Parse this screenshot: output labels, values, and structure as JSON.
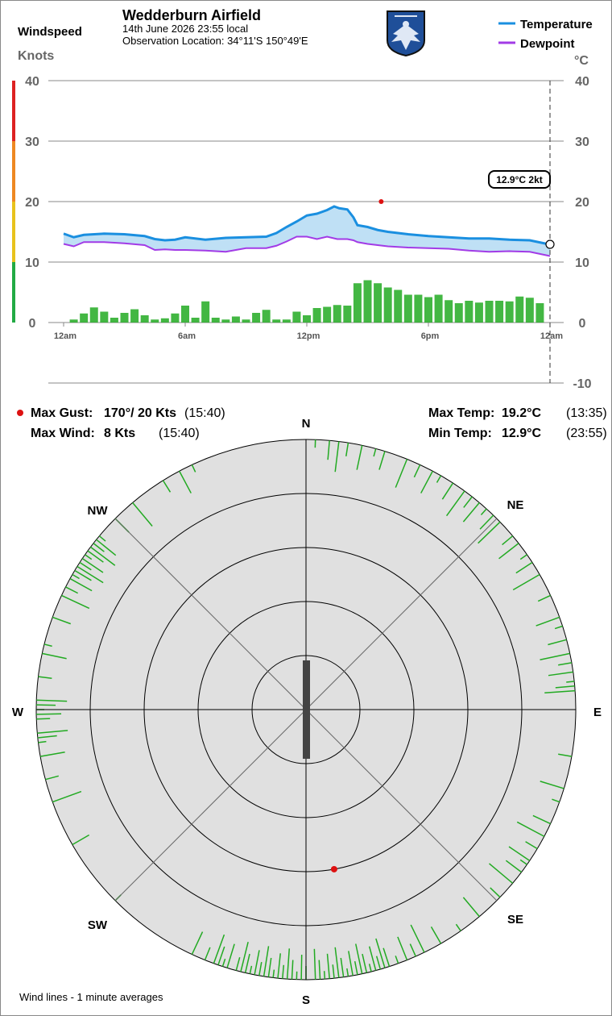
{
  "header": {
    "title": "Wedderburn Airfield",
    "date_line": "14th June 2026  23:55 local",
    "location_line": "Observation Location: 34°11'S 150°49'E",
    "windspeed_label": "Windspeed",
    "knots_label": "Knots",
    "celsius_label": "°C"
  },
  "legend": {
    "temperature": "Temperature",
    "dewpoint": "Dewpoint"
  },
  "colors": {
    "temperature": "#1a8fe0",
    "dewpoint": "#a23be6",
    "fill": "#bfe0f5",
    "wind_bar": "#22aa22",
    "gust_marker": "#dd1111",
    "rose_bg": "#e0e0e0",
    "runway": "#444444",
    "scale_green": "#22aa44",
    "scale_yellow": "#e8c21c",
    "scale_orange": "#ee8822",
    "scale_red": "#dd2222"
  },
  "readout": {
    "tooltip": "12.9°C  2kt"
  },
  "stats": {
    "max_gust_label": "Max Gust:",
    "max_gust_value": "170°/ 20 Kts",
    "max_gust_time": "(15:40)",
    "max_wind_label": "Max Wind:",
    "max_wind_value": "8 Kts",
    "max_wind_time": "(15:40)",
    "max_temp_label": "Max Temp:",
    "max_temp_value": "19.2°C",
    "max_temp_time": "(13:35)",
    "min_temp_label": "Min Temp:",
    "min_temp_value": "12.9°C",
    "min_temp_time": "(23:55)"
  },
  "compass": {
    "n": "N",
    "ne": "NE",
    "e": "E",
    "se": "SE",
    "s": "S",
    "sw": "SW",
    "w": "W",
    "nw": "NW"
  },
  "footer": {
    "note": "Wind lines - 1 minute averages"
  },
  "chart_data": [
    {
      "type": "line",
      "x_unit": "hours since midnight",
      "x_ticks": [
        {
          "x": 0,
          "label": "12am"
        },
        {
          "x": 6,
          "label": "6am"
        },
        {
          "x": 12,
          "label": "12pm"
        },
        {
          "x": 18,
          "label": "6pm"
        },
        {
          "x": 24,
          "label": "12am"
        }
      ],
      "xlim": [
        0,
        24
      ],
      "left_axis": {
        "label": "Knots",
        "ticks": [
          0,
          10,
          20,
          30,
          40
        ],
        "ylim": [
          0,
          40
        ]
      },
      "right_axis": {
        "label": "°C",
        "ticks": [
          -10,
          0,
          10,
          20,
          30,
          40
        ],
        "ylim": [
          -10,
          40
        ]
      },
      "grid": true,
      "legend_position": "top-right",
      "series": [
        {
          "name": "Temperature",
          "x": [
            0,
            0.5,
            1,
            2,
            3,
            4,
            4.5,
            5,
            5.5,
            6,
            7,
            8,
            9,
            10,
            10.5,
            11,
            11.5,
            12,
            12.5,
            13,
            13.35,
            13.6,
            14,
            14.3,
            14.5,
            15,
            15.5,
            16,
            17,
            18,
            19,
            20,
            21,
            22,
            23,
            24
          ],
          "values": [
            14.7,
            14.1,
            14.5,
            14.7,
            14.6,
            14.3,
            13.8,
            13.6,
            13.7,
            14.1,
            13.7,
            14.0,
            14.1,
            14.2,
            14.8,
            15.8,
            16.7,
            17.7,
            18.0,
            18.6,
            19.2,
            18.9,
            18.7,
            17.4,
            16.1,
            15.8,
            15.3,
            15.0,
            14.6,
            14.3,
            14.1,
            13.9,
            13.9,
            13.7,
            13.6,
            12.9
          ]
        },
        {
          "name": "Dewpoint",
          "x": [
            0,
            0.5,
            1,
            2,
            3,
            4,
            4.5,
            5,
            5.5,
            6,
            7,
            8,
            9,
            10,
            10.5,
            11,
            11.5,
            12,
            12.5,
            13,
            13.5,
            14,
            14.3,
            14.5,
            15,
            15.5,
            16,
            17,
            18,
            19,
            20,
            21,
            22,
            23,
            24
          ],
          "values": [
            13.0,
            12.6,
            13.3,
            13.3,
            13.1,
            12.8,
            12.0,
            12.1,
            12.0,
            12.0,
            11.9,
            11.7,
            12.3,
            12.3,
            12.7,
            13.4,
            14.2,
            14.2,
            13.8,
            14.2,
            13.8,
            13.8,
            13.6,
            13.3,
            13.0,
            12.8,
            12.6,
            12.4,
            12.3,
            12.2,
            11.9,
            11.7,
            11.8,
            11.7,
            11.0
          ]
        },
        {
          "name": "Wind speed (knots)",
          "x": [
            0.5,
            1.0,
            1.5,
            2.0,
            2.5,
            3.0,
            3.5,
            4.0,
            4.5,
            5.0,
            5.5,
            6.0,
            6.5,
            7.0,
            7.5,
            8.0,
            8.5,
            9.0,
            9.5,
            10.0,
            10.5,
            11.0,
            11.5,
            12.0,
            12.5,
            13.0,
            13.5,
            14.0,
            14.5,
            15.0,
            15.5,
            16.0,
            16.5,
            17.0,
            17.5,
            18.0,
            18.5,
            19.0,
            19.5,
            20.0,
            20.5,
            21.0,
            21.5,
            22.0,
            22.5,
            23.0,
            23.5
          ],
          "values": [
            0.5,
            1.5,
            2.5,
            1.8,
            0.8,
            1.6,
            2.2,
            1.2,
            0.5,
            0.7,
            1.5,
            2.8,
            0.8,
            3.5,
            0.8,
            0.5,
            1.0,
            0.5,
            1.6,
            2.1,
            0.5,
            0.5,
            1.8,
            1.2,
            2.4,
            2.6,
            2.9,
            2.8,
            6.5,
            7.0,
            6.5,
            5.8,
            5.4,
            4.6,
            4.6,
            4.2,
            4.6,
            3.7,
            3.2,
            3.6,
            3.3,
            3.6,
            3.6,
            3.5,
            4.3,
            4.1,
            3.2
          ]
        }
      ],
      "markers": [
        {
          "name": "Max Gust",
          "x": 15.67,
          "y": 20
        }
      ]
    },
    {
      "type": "scatter",
      "chart": "polar wind rose",
      "radial_max_knots": 20,
      "ring_values": [
        4,
        8,
        12,
        16,
        20
      ],
      "runway_heading_deg": 180,
      "max_gust": {
        "direction_deg": 170,
        "speed_kts": 20
      },
      "direction_samples_deg": [
        2,
        5,
        7,
        9,
        12,
        15,
        17,
        22,
        25,
        28,
        30,
        33,
        36,
        38,
        40,
        42,
        44,
        46,
        50,
        52,
        55,
        57,
        60,
        65,
        70,
        72,
        75,
        78,
        80,
        82,
        84,
        85,
        86,
        100,
        107,
        110,
        115,
        118,
        121,
        124,
        125,
        127,
        130,
        134,
        140,
        145,
        150,
        154,
        156,
        158,
        160,
        162,
        163,
        164,
        165,
        166,
        167,
        168,
        169,
        170,
        171,
        172,
        173,
        174,
        175,
        176,
        177,
        178,
        180,
        181,
        182,
        183,
        184,
        185,
        186,
        187,
        188,
        189,
        190,
        191,
        192,
        193,
        194,
        195,
        197,
        198,
        199,
        200,
        202,
        205,
        225,
        240,
        250,
        255,
        260,
        263,
        264,
        265,
        268,
        269,
        270,
        271,
        272,
        277,
        282,
        284,
        290,
        295,
        297,
        299,
        300,
        301,
        302,
        303,
        304,
        305,
        306,
        307,
        308,
        309,
        310,
        315,
        320,
        328,
        332,
        335
      ]
    }
  ]
}
